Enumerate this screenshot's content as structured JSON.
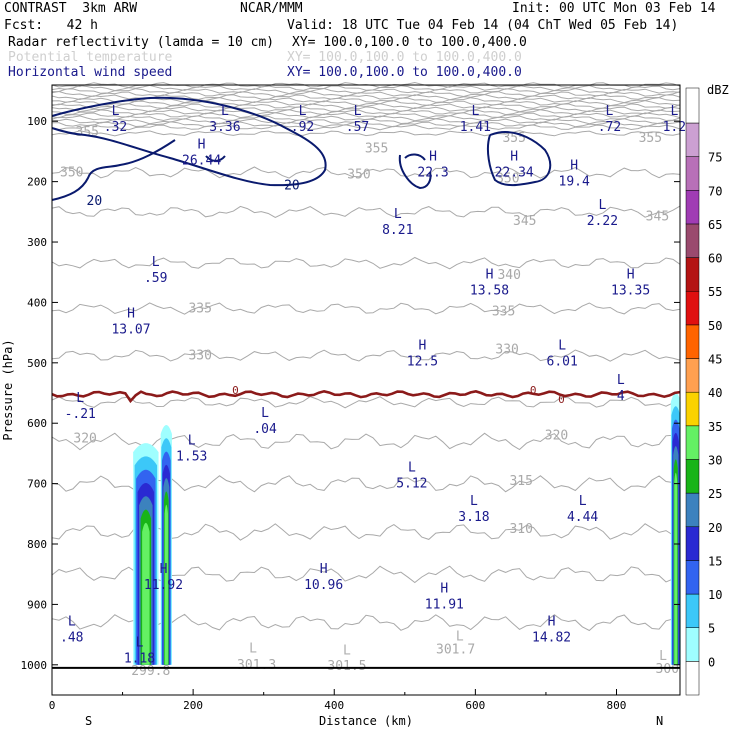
{
  "header": {
    "title_left": "CONTRAST  3km ARW",
    "title_center": "NCAR/MMM",
    "init": "Init: 00 UTC Mon 03 Feb 14",
    "fcst": "Fcst:   42 h",
    "valid": "Valid: 18 UTC Tue 04 Feb 14 (04 ChT Wed 05 Feb 14)",
    "fields": [
      {
        "name": "Radar reflectivity (lamda = 10 cm)",
        "xy": "XY= 100.0,100.0 to 100.0,400.0",
        "color": "#000000"
      },
      {
        "name": "Potential temperature",
        "xy": "XY= 100.0,100.0 to 100.0,400.0",
        "color": "#c8c8c8"
      },
      {
        "name": "Horizontal wind speed",
        "xy": "XY= 100.0,100.0 to 100.0,400.0",
        "color": "#1a1a8c"
      }
    ]
  },
  "chart_data": {
    "type": "cross-section",
    "xlabel": "Distance (km)",
    "ylabel": "Pressure (hPa)",
    "xlim": [
      0,
      890
    ],
    "ylim": [
      1050,
      40
    ],
    "x_ticks": [
      0,
      200,
      400,
      600,
      800
    ],
    "y_ticks": [
      100,
      200,
      300,
      400,
      500,
      600,
      700,
      800,
      900,
      1000
    ],
    "x_end_labels": {
      "left": "S",
      "right": "N"
    },
    "colorbar": {
      "unit": "dBZ",
      "levels": [
        0,
        5,
        10,
        15,
        20,
        25,
        30,
        35,
        40,
        45,
        50,
        55,
        60,
        65,
        70,
        75
      ],
      "colors": [
        "#ffffff",
        "#9ffeff",
        "#3cc8f8",
        "#3264f0",
        "#2a2ad2",
        "#3c82be",
        "#18b418",
        "#64f064",
        "#fad200",
        "#ffa050",
        "#ff6400",
        "#e01010",
        "#b41414",
        "#9a4a6e",
        "#a03cb4",
        "#b870b8",
        "#cca0d2"
      ]
    },
    "theta_labels": [
      {
        "text": "355",
        "x": 50,
        "p": 118
      },
      {
        "text": "355",
        "x": 460,
        "p": 145
      },
      {
        "text": "355",
        "x": 655,
        "p": 128
      },
      {
        "text": "355",
        "x": 848,
        "p": 128
      },
      {
        "text": "350",
        "x": 28,
        "p": 185
      },
      {
        "text": "350",
        "x": 435,
        "p": 188
      },
      {
        "text": "350",
        "x": 646,
        "p": 195
      },
      {
        "text": "345",
        "x": 670,
        "p": 265
      },
      {
        "text": "345",
        "x": 858,
        "p": 258
      },
      {
        "text": "340",
        "x": 648,
        "p": 355
      },
      {
        "text": "335",
        "x": 210,
        "p": 410
      },
      {
        "text": "335",
        "x": 640,
        "p": 415
      },
      {
        "text": "330",
        "x": 210,
        "p": 488
      },
      {
        "text": "330",
        "x": 645,
        "p": 478
      },
      {
        "text": "320",
        "x": 47,
        "p": 625
      },
      {
        "text": "320",
        "x": 715,
        "p": 620
      },
      {
        "text": "315",
        "x": 665,
        "p": 696
      },
      {
        "text": "310",
        "x": 665,
        "p": 775
      },
      {
        "text": "301.3",
        "x": 290,
        "p": 1000
      },
      {
        "text": "301.5",
        "x": 418,
        "p": 1002
      },
      {
        "text": "301.7",
        "x": 572,
        "p": 975
      },
      {
        "text": "299.8",
        "x": 140,
        "p": 1010
      },
      {
        "text": "300",
        "x": 872,
        "p": 1007
      }
    ],
    "extrema": [
      {
        "kind": "L",
        "value": ".32",
        "x": 90,
        "p": 90,
        "color": "#1a1a8c"
      },
      {
        "kind": "L",
        "value": "3.36",
        "x": 245,
        "p": 90,
        "color": "#1a1a8c"
      },
      {
        "kind": "L",
        "value": ".92",
        "x": 355,
        "p": 90,
        "color": "#1a1a8c"
      },
      {
        "kind": "L",
        "value": ".57",
        "x": 433,
        "p": 90,
        "color": "#1a1a8c"
      },
      {
        "kind": "L",
        "value": "1.41",
        "x": 600,
        "p": 90,
        "color": "#1a1a8c"
      },
      {
        "kind": "L",
        "value": ".72",
        "x": 790,
        "p": 90,
        "color": "#1a1a8c"
      },
      {
        "kind": "L",
        "value": "1.2",
        "x": 882,
        "p": 90,
        "color": "#1a1a8c"
      },
      {
        "kind": "H",
        "value": "26.44",
        "x": 212,
        "p": 145,
        "color": "#1a1a8c"
      },
      {
        "kind": "H",
        "value": "22.3",
        "x": 540,
        "p": 165,
        "color": "#1a1a8c"
      },
      {
        "kind": "H",
        "value": "22.34",
        "x": 655,
        "p": 165,
        "color": "#1a1a8c"
      },
      {
        "kind": "H",
        "value": "19.4",
        "x": 740,
        "p": 180,
        "color": "#1a1a8c"
      },
      {
        "kind": "L",
        "value": "8.21",
        "x": 490,
        "p": 260,
        "color": "#1a1a8c"
      },
      {
        "kind": "L",
        "value": "2.22",
        "x": 780,
        "p": 245,
        "color": "#1a1a8c"
      },
      {
        "kind": "L",
        "value": ".59",
        "x": 147,
        "p": 340,
        "color": "#1a1a8c"
      },
      {
        "kind": "H",
        "value": "13.58",
        "x": 620,
        "p": 360,
        "color": "#1a1a8c"
      },
      {
        "kind": "H",
        "value": "13.35",
        "x": 820,
        "p": 360,
        "color": "#1a1a8c"
      },
      {
        "kind": "H",
        "value": "13.07",
        "x": 112,
        "p": 425,
        "color": "#1a1a8c"
      },
      {
        "kind": "H",
        "value": "12.5",
        "x": 525,
        "p": 478,
        "color": "#1a1a8c"
      },
      {
        "kind": "L",
        "value": "6.01",
        "x": 723,
        "p": 478,
        "color": "#1a1a8c"
      },
      {
        "kind": "L",
        "value": "4",
        "x": 806,
        "p": 535,
        "color": "#1a1a8c"
      },
      {
        "kind": "L",
        "value": "-.21",
        "x": 40,
        "p": 565,
        "color": "#1a1a8c"
      },
      {
        "kind": "L",
        "value": ".04",
        "x": 302,
        "p": 590,
        "color": "#1a1a8c"
      },
      {
        "kind": "L",
        "value": "1.53",
        "x": 198,
        "p": 635,
        "color": "#1a1a8c"
      },
      {
        "kind": "L",
        "value": "5.12",
        "x": 510,
        "p": 680,
        "color": "#1a1a8c"
      },
      {
        "kind": "L",
        "value": "3.18",
        "x": 598,
        "p": 735,
        "color": "#1a1a8c"
      },
      {
        "kind": "L",
        "value": "4.44",
        "x": 752,
        "p": 735,
        "color": "#1a1a8c"
      },
      {
        "kind": "H",
        "value": "11.92",
        "x": 158,
        "p": 848,
        "color": "#1a1a8c"
      },
      {
        "kind": "H",
        "value": "10.96",
        "x": 385,
        "p": 848,
        "color": "#1a1a8c"
      },
      {
        "kind": "H",
        "value": "11.91",
        "x": 556,
        "p": 880,
        "color": "#1a1a8c"
      },
      {
        "kind": "H",
        "value": "14.82",
        "x": 708,
        "p": 935,
        "color": "#1a1a8c"
      },
      {
        "kind": "L",
        "value": ".48",
        "x": 28,
        "p": 935,
        "color": "#1a1a8c"
      },
      {
        "kind": "L",
        "value": "1.18",
        "x": 124,
        "p": 970,
        "color": "#1a1a8c"
      },
      {
        "kind": "L",
        "value": "",
        "x": 285,
        "p": 980,
        "color": "#b0b0b0"
      },
      {
        "kind": "L",
        "value": "",
        "x": 418,
        "p": 983,
        "color": "#b0b0b0"
      },
      {
        "kind": "L",
        "value": "",
        "x": 578,
        "p": 960,
        "color": "#b0b0b0"
      },
      {
        "kind": "L",
        "value": "",
        "x": 866,
        "p": 992,
        "color": "#b0b0b0"
      }
    ],
    "wind_contour_labels": [
      {
        "text": "20",
        "x": 60,
        "p": 230
      },
      {
        "text": "20",
        "x": 340,
        "p": 205
      }
    ],
    "zero_contour_labels": [
      {
        "text": "0",
        "x": 260,
        "p": 545
      },
      {
        "text": "0",
        "x": 682,
        "p": 545
      },
      {
        "text": "0",
        "x": 722,
        "p": 560
      }
    ]
  }
}
